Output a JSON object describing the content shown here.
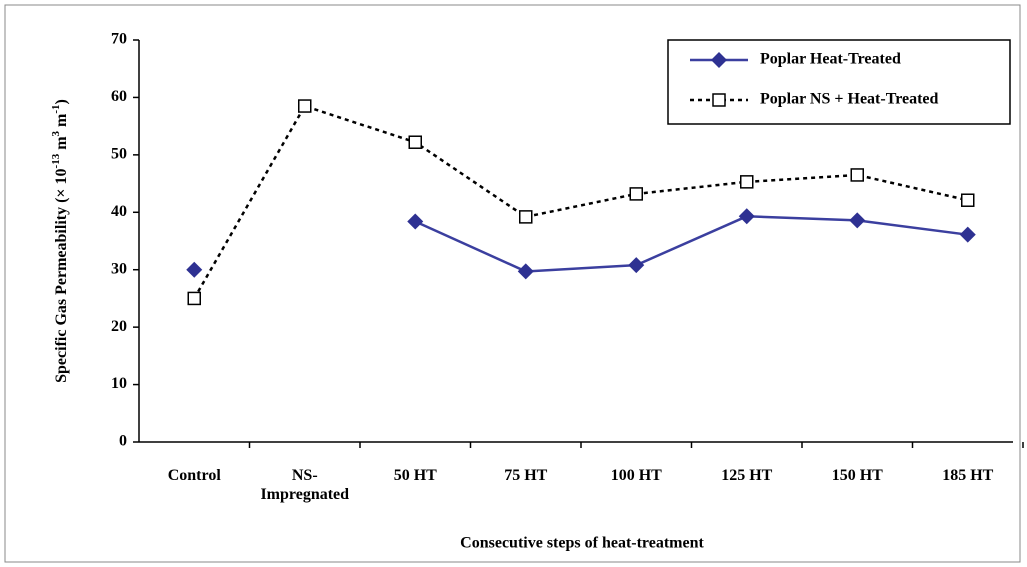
{
  "chart_data": {
    "type": "line",
    "ylabel_parts": [
      "Specific Gas Permeability (× 10",
      "-13",
      " m",
      "3",
      " m",
      "-1",
      ")"
    ],
    "xlabel": "Consecutive steps of heat-treatment",
    "categories": [
      "Control",
      "NS-Impregnated",
      "50 HT",
      "75 HT",
      "100 HT",
      "125 HT",
      "150 HT",
      "185 HT"
    ],
    "series": [
      {
        "name": "Poplar Heat-Treated",
        "color": "#2e3192",
        "marker": "diamond",
        "dash": false,
        "values": [
          30,
          null,
          38.4,
          29.7,
          30.8,
          39.3,
          38.6,
          36.1
        ]
      },
      {
        "name": "Poplar NS + Heat-Treated",
        "color": "#000000",
        "marker": "square",
        "dash": true,
        "values": [
          25,
          58.5,
          52.2,
          39.2,
          43.2,
          45.3,
          46.5,
          42.1
        ]
      }
    ],
    "ylim": [
      0,
      70
    ],
    "yticks": [
      0,
      10,
      20,
      30,
      40,
      50,
      60,
      70
    ],
    "legend": "top-right"
  }
}
